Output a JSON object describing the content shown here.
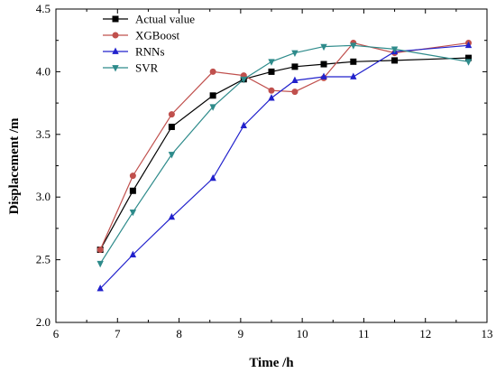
{
  "chart_data": {
    "type": "line",
    "title": "",
    "xlabel": "Time /h",
    "ylabel": "Displacement /m",
    "xlim": [
      6,
      13
    ],
    "ylim": [
      2.0,
      4.5
    ],
    "xticks": [
      "6",
      "7",
      "8",
      "9",
      "10",
      "11",
      "12",
      "13"
    ],
    "yticks": [
      "2.0",
      "2.5",
      "3.0",
      "3.5",
      "4.0",
      "4.5"
    ],
    "grid": false,
    "legend_position": "top-left",
    "series": [
      {
        "name": "Actual value",
        "color": "#000000",
        "marker": "square",
        "x": [
          6.72,
          7.25,
          7.88,
          8.55,
          9.05,
          9.5,
          9.88,
          10.35,
          10.83,
          11.5,
          12.7
        ],
        "y": [
          2.58,
          3.05,
          3.56,
          3.81,
          3.94,
          4.0,
          4.04,
          4.06,
          4.08,
          4.09,
          4.11
        ]
      },
      {
        "name": "XGBoost",
        "color": "#c0504d",
        "marker": "circle",
        "x": [
          6.72,
          7.25,
          7.88,
          8.55,
          9.05,
          9.5,
          9.88,
          10.35,
          10.83,
          11.5,
          12.7
        ],
        "y": [
          2.58,
          3.17,
          3.66,
          4.0,
          3.97,
          3.85,
          3.84,
          3.95,
          4.23,
          4.15,
          4.23
        ]
      },
      {
        "name": "RNNs",
        "color": "#2222cc",
        "marker": "triangle-up",
        "x": [
          6.72,
          7.25,
          7.88,
          8.55,
          9.05,
          9.5,
          9.88,
          10.35,
          10.83,
          11.5,
          12.7
        ],
        "y": [
          2.27,
          2.54,
          2.84,
          3.15,
          3.57,
          3.79,
          3.93,
          3.96,
          3.96,
          4.16,
          4.21
        ]
      },
      {
        "name": "SVR",
        "color": "#2e8b8b",
        "marker": "triangle-down",
        "x": [
          6.72,
          7.25,
          7.88,
          8.55,
          9.05,
          9.5,
          9.88,
          10.35,
          10.83,
          11.5,
          12.7
        ],
        "y": [
          2.47,
          2.88,
          3.34,
          3.72,
          3.94,
          4.08,
          4.15,
          4.2,
          4.21,
          4.18,
          4.08
        ]
      }
    ]
  }
}
